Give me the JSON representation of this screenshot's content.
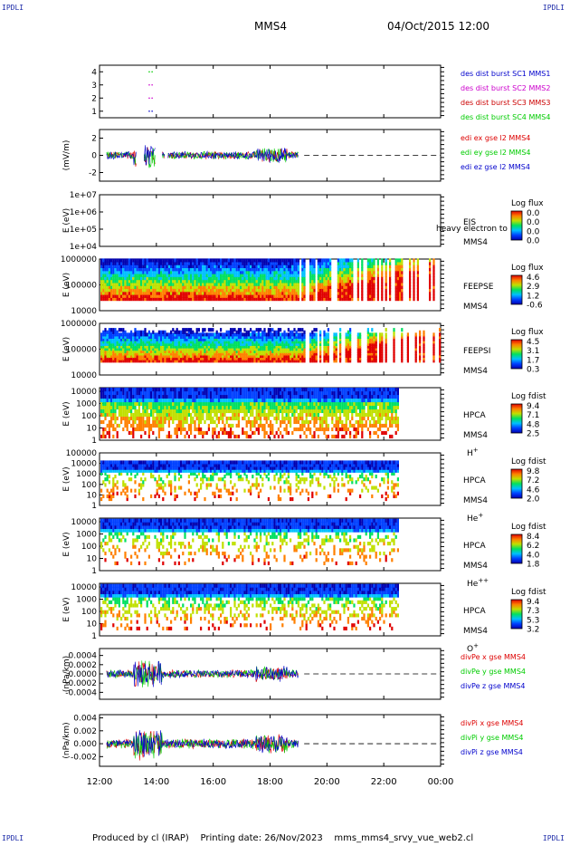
{
  "corners": {
    "tl": "IPDLI",
    "tr": "IPDLI",
    "bl": "IPDLI",
    "br": "IPDLI"
  },
  "header": {
    "spacecraft": "MMS4",
    "datetime": "04/Oct/2015 12:00"
  },
  "footer": {
    "text": "Produced by cl (IRAP)    Printing date: 26/Nov/2023    mms_mms4_srvy_vue_web2.cl"
  },
  "time_axis": {
    "ticks": [
      "12:00",
      "14:00",
      "16:00",
      "18:00",
      "20:00",
      "22:00",
      "00:00"
    ],
    "range_hours": [
      12,
      24
    ]
  },
  "colors": {
    "blue": "#0000cc",
    "magenta": "#cc00cc",
    "red": "#dd0000",
    "green": "#00cc00",
    "colorbar": [
      "#0000b0",
      "#0040ff",
      "#00c0ff",
      "#00e060",
      "#c0e000",
      "#ff8000",
      "#e00000"
    ]
  },
  "chart_data": [
    {
      "id": "burst",
      "type": "scatter",
      "ylim": [
        0.5,
        4.5
      ],
      "yticks": [
        "4",
        "3",
        "2",
        "1"
      ],
      "yvals": [
        4,
        3,
        2,
        1
      ],
      "ylabel": "",
      "legend": [
        {
          "text": "des dist burst SC1 MMS1",
          "color": "#0000cc"
        },
        {
          "text": "des dist burst SC2 MMS2",
          "color": "#cc00cc"
        },
        {
          "text": "des dist burst SC3 MMS3",
          "color": "#cc0000"
        },
        {
          "text": "des dist burst SC4 MMS4",
          "color": "#00cc00"
        }
      ],
      "points": [
        {
          "x": 13.75,
          "y": 4,
          "color": "#00cc00"
        },
        {
          "x": 13.85,
          "y": 4,
          "color": "#00cc00"
        },
        {
          "x": 13.75,
          "y": 3,
          "color": "#cc00cc"
        },
        {
          "x": 13.85,
          "y": 3,
          "color": "#cc00cc"
        },
        {
          "x": 13.75,
          "y": 2,
          "color": "#cc00cc"
        },
        {
          "x": 13.85,
          "y": 2,
          "color": "#cc00cc"
        },
        {
          "x": 13.75,
          "y": 1,
          "color": "#0000cc"
        },
        {
          "x": 13.85,
          "y": 1,
          "color": "#0000cc"
        }
      ]
    },
    {
      "id": "edi",
      "type": "line",
      "ylabel": "(mV/m)",
      "ylim": [
        -3,
        3
      ],
      "yticks": [
        "2",
        "0",
        "-2"
      ],
      "yvals": [
        2,
        0,
        -2
      ],
      "legend": [
        {
          "text": "edi ex gse l2 MMS4",
          "color": "#dd0000"
        },
        {
          "text": "edi ey gse l2 MMS4",
          "color": "#00cc00"
        },
        {
          "text": "edi ez gse l2 MMS4",
          "color": "#0000cc"
        }
      ],
      "data_end_hour": 19.0,
      "amplitude": 1.8
    },
    {
      "id": "eis",
      "type": "heatmap",
      "ylabel": "E (eV)",
      "ylog": [
        4,
        7
      ],
      "yticks": [
        "1e+07",
        "1e+06",
        "1e+05",
        "1e+04"
      ],
      "yvals": [
        7,
        6,
        5,
        4
      ],
      "labels": [
        "EIS",
        "MMS4"
      ],
      "subtitle": "heavy electron to",
      "colorbar_title": "Log flux",
      "colorbar_ticks": [
        "0.0",
        "0.0",
        "0.0",
        "0.0"
      ],
      "empty": true
    },
    {
      "id": "feepse",
      "type": "heatmap",
      "ylabel": "E (eV)",
      "ylog": [
        4,
        6
      ],
      "yticks": [
        "1000000",
        "100000",
        "10000"
      ],
      "yvals": [
        6,
        5,
        4
      ],
      "labels": [
        "FEEPSE",
        "MMS4"
      ],
      "colorbar_title": "Log flux",
      "colorbar_ticks": [
        "4.6",
        "2.9",
        "1.2",
        "-0.6"
      ]
    },
    {
      "id": "feepsi",
      "type": "heatmap",
      "ylabel": "E (eV)",
      "ylog": [
        4,
        6
      ],
      "yticks": [
        "1000000",
        "100000",
        "10000"
      ],
      "yvals": [
        6,
        5,
        4
      ],
      "labels": [
        "FEEPSI",
        "MMS4"
      ],
      "colorbar_title": "Log flux",
      "colorbar_ticks": [
        "4.5",
        "3.1",
        "1.7",
        "0.3"
      ]
    },
    {
      "id": "hpca-h",
      "type": "heatmap",
      "ylabel": "E (eV)",
      "ylog": [
        0,
        4.3
      ],
      "yticks": [
        "10000",
        "1000",
        "100",
        "10",
        "1"
      ],
      "yvals": [
        4,
        3,
        2,
        1,
        0
      ],
      "labels": [
        "HPCA",
        "MMS4"
      ],
      "species": "H",
      "charge": "+",
      "colorbar_title": "Log fdist",
      "colorbar_ticks": [
        "9.4",
        "7.1",
        "4.8",
        "2.5"
      ]
    },
    {
      "id": "hpca-he",
      "type": "heatmap",
      "ylabel": "E (eV)",
      "ylog": [
        0,
        5
      ],
      "yticks": [
        "100000",
        "10000",
        "1000",
        "100",
        "10",
        "1"
      ],
      "yvals": [
        5,
        4,
        3,
        2,
        1,
        0
      ],
      "labels": [
        "HPCA",
        "MMS4"
      ],
      "species": "He",
      "charge": "+",
      "colorbar_title": "Log fdist",
      "colorbar_ticks": [
        "9.8",
        "7.2",
        "4.6",
        "2.0"
      ]
    },
    {
      "id": "hpca-he2",
      "type": "heatmap",
      "ylabel": "E (eV)",
      "ylog": [
        0,
        4.3
      ],
      "yticks": [
        "10000",
        "1000",
        "100",
        "10",
        "1"
      ],
      "yvals": [
        4,
        3,
        2,
        1,
        0
      ],
      "labels": [
        "HPCA",
        "MMS4"
      ],
      "species": "He",
      "charge": "++",
      "colorbar_title": "Log fdist",
      "colorbar_ticks": [
        "8.4",
        "6.2",
        "4.0",
        "1.8"
      ]
    },
    {
      "id": "hpca-o",
      "type": "heatmap",
      "ylabel": "E (eV)",
      "ylog": [
        0,
        4.3
      ],
      "yticks": [
        "10000",
        "1000",
        "100",
        "10",
        "1"
      ],
      "yvals": [
        4,
        3,
        2,
        1,
        0
      ],
      "labels": [
        "HPCA",
        "MMS4"
      ],
      "species": "O",
      "charge": "+",
      "colorbar_title": "Log fdist",
      "colorbar_ticks": [
        "9.4",
        "7.3",
        "5.3",
        "3.2"
      ]
    },
    {
      "id": "divpe",
      "type": "line",
      "ylabel": "(nPa/km)",
      "ylim": [
        -0.00055,
        0.00055
      ],
      "yticks": [
        "0.0004",
        "0.0002",
        "0.0000",
        "-0.0002",
        "-0.0004"
      ],
      "yvals": [
        0.0004,
        0.0002,
        0,
        -0.0002,
        -0.0004
      ],
      "legend": [
        {
          "text": "divPe x gse MMS4",
          "color": "#dd0000"
        },
        {
          "text": "divPe y gse MMS4",
          "color": "#00cc00"
        },
        {
          "text": "divPe z gse MMS4",
          "color": "#0000cc"
        }
      ],
      "data_end_hour": 19.0,
      "amplitude": 0.00035
    },
    {
      "id": "divpi",
      "type": "line",
      "ylabel": "(nPa/km)",
      "ylim": [
        -0.0035,
        0.0045
      ],
      "yticks": [
        "0.004",
        "0.002",
        "0.000",
        "-0.002"
      ],
      "yvals": [
        0.004,
        0.002,
        0,
        -0.002
      ],
      "legend": [
        {
          "text": "divPi x gse MMS4",
          "color": "#dd0000"
        },
        {
          "text": "divPi y gse MMS4",
          "color": "#00cc00"
        },
        {
          "text": "divPi z gse MMS4",
          "color": "#0000cc"
        }
      ],
      "data_end_hour": 19.0,
      "amplitude": 0.003
    }
  ]
}
